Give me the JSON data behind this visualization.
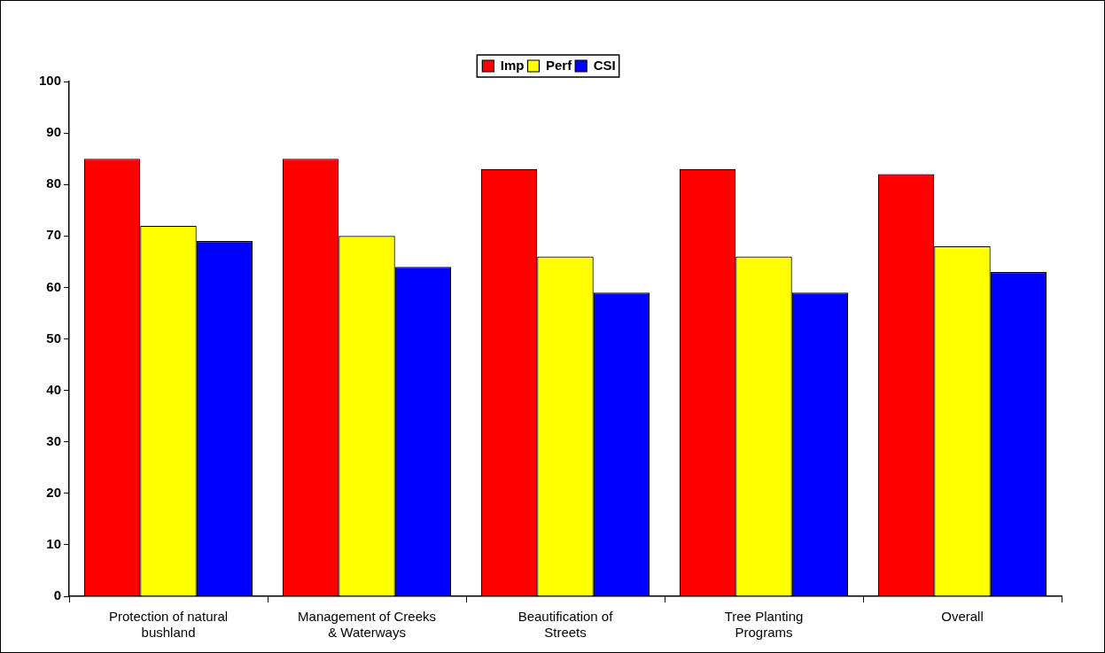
{
  "chart_data": {
    "type": "bar",
    "categories": [
      "Protection of natural bushland",
      "Management of Creeks & Waterways",
      "Beautification of Streets",
      "Tree Planting Programs",
      "Overall"
    ],
    "series": [
      {
        "name": "Imp",
        "color": "#ff0000",
        "values": [
          85,
          85,
          83,
          83,
          82
        ]
      },
      {
        "name": "Perf",
        "color": "#ffff00",
        "values": [
          72,
          70,
          66,
          66,
          68
        ]
      },
      {
        "name": "CSI",
        "color": "#0000ff",
        "values": [
          69,
          64,
          59,
          59,
          63
        ]
      }
    ],
    "ylim": [
      0,
      100
    ],
    "yticks": [
      0,
      10,
      20,
      30,
      40,
      50,
      60,
      70,
      80,
      90,
      100
    ],
    "legend": "top"
  }
}
